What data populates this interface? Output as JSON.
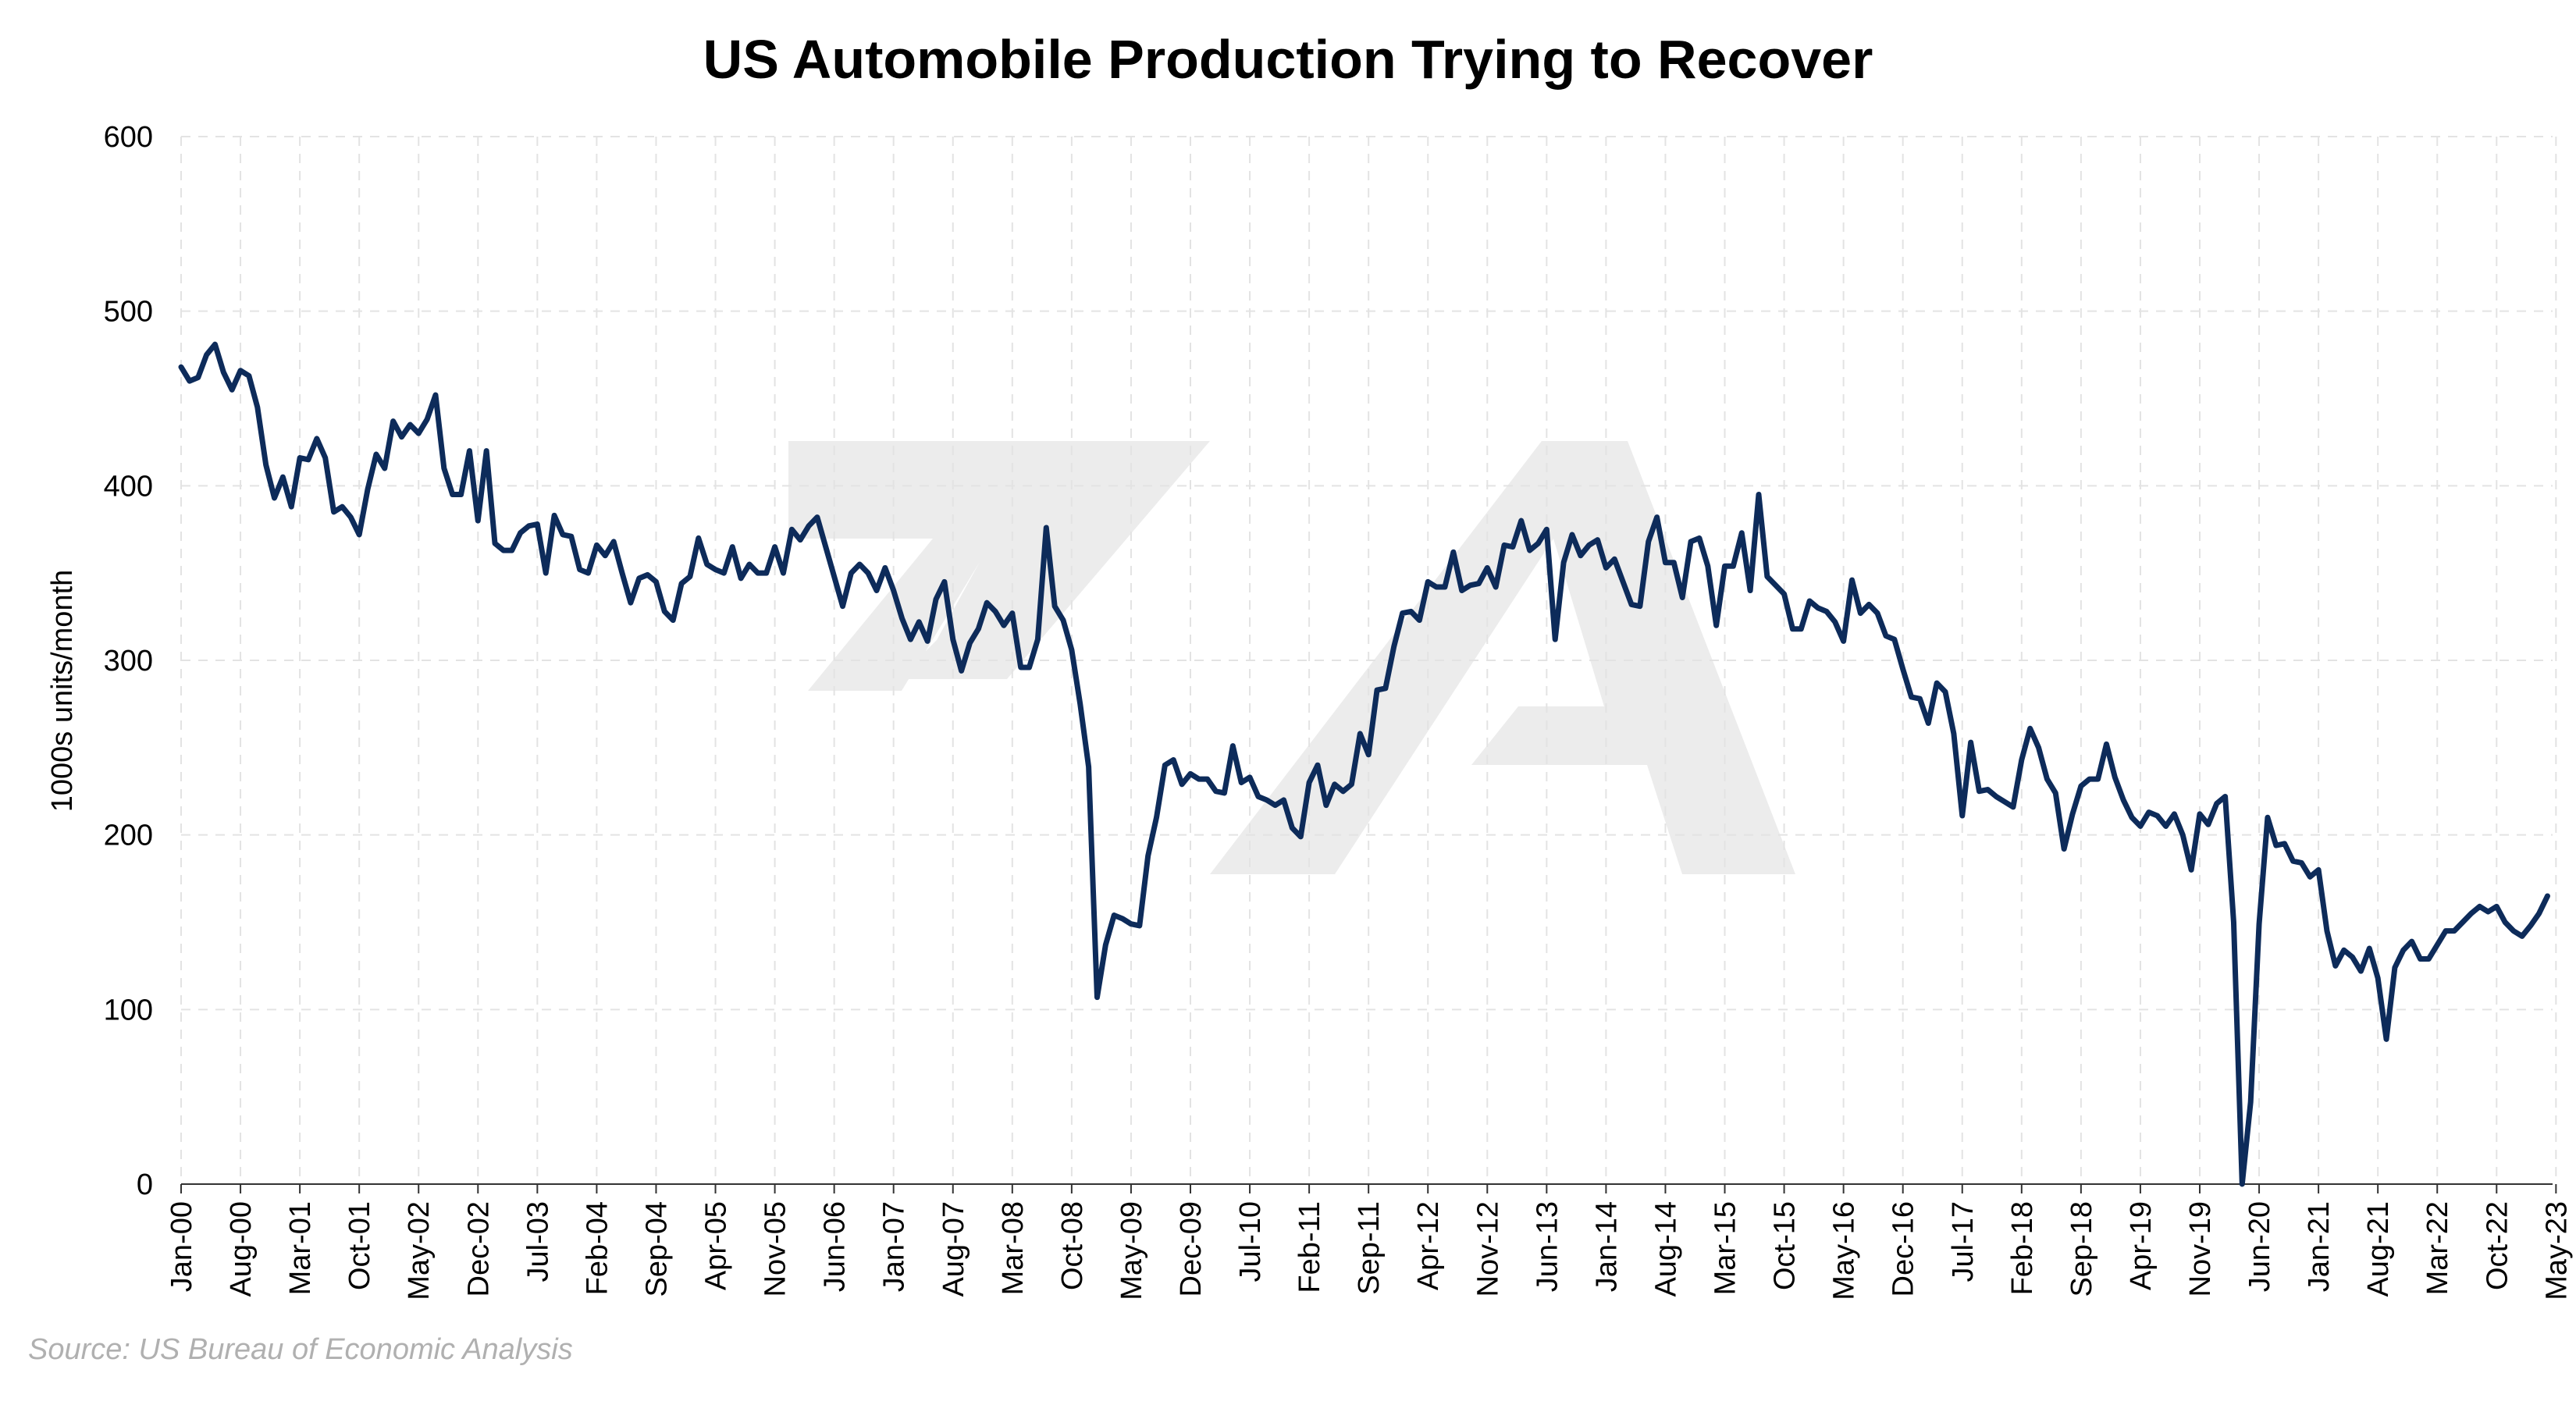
{
  "chart_data": {
    "type": "line",
    "title": "US Automobile Production Trying to Recover",
    "xlabel": "",
    "ylabel": "1000s units/month",
    "ylim": [
      0,
      600
    ],
    "yticks": [
      0,
      100,
      200,
      300,
      400,
      500,
      600
    ],
    "x_tick_labels": [
      "Jan-00",
      "Aug-00",
      "Mar-01",
      "Oct-01",
      "May-02",
      "Dec-02",
      "Jul-03",
      "Feb-04",
      "Sep-04",
      "Apr-05",
      "Nov-05",
      "Jun-06",
      "Jan-07",
      "Aug-07",
      "Mar-08",
      "Oct-08",
      "May-09",
      "Dec-09",
      "Jul-10",
      "Feb-11",
      "Sep-11",
      "Apr-12",
      "Nov-12",
      "Jun-13",
      "Jan-14",
      "Aug-14",
      "Mar-15",
      "Oct-15",
      "May-16",
      "Dec-16",
      "Jul-17",
      "Feb-18",
      "Sep-18",
      "Apr-19",
      "Nov-19",
      "Jun-20",
      "Jan-21",
      "Aug-21",
      "Mar-22",
      "Oct-22",
      "May-23"
    ],
    "x_start": "Jan-00",
    "x_end": "May-23",
    "grid": "dashed, both axes",
    "line_color": "#0d2b5a",
    "series": [
      {
        "name": "",
        "values": [
          468,
          460,
          462,
          475,
          481,
          465,
          455,
          466,
          463,
          445,
          412,
          393,
          405,
          388,
          416,
          415,
          427,
          416,
          385,
          388,
          382,
          372,
          398,
          418,
          410,
          437,
          428,
          435,
          430,
          438,
          452,
          410,
          395,
          395,
          420,
          380,
          420,
          367,
          363,
          363,
          373,
          377,
          378,
          350,
          383,
          372,
          371,
          352,
          350,
          366,
          360,
          368,
          350,
          333,
          347,
          349,
          345,
          328,
          323,
          344,
          348,
          370,
          355,
          352,
          350,
          365,
          347,
          355,
          350,
          350,
          365,
          350,
          375,
          369,
          377,
          382,
          365,
          348,
          331,
          350,
          355,
          350,
          340,
          353,
          340,
          324,
          312,
          322,
          311,
          335,
          345,
          312,
          294,
          310,
          318,
          333,
          328,
          320,
          327,
          296,
          296,
          312,
          376,
          331,
          323,
          306,
          275,
          239,
          107,
          137,
          154,
          152,
          149,
          148,
          188,
          210,
          240,
          243,
          229,
          235,
          232,
          232,
          225,
          224,
          251,
          230,
          233,
          222,
          220,
          217,
          220,
          204,
          199,
          230,
          240,
          217,
          229,
          225,
          229,
          258,
          246,
          283,
          284,
          308,
          327,
          328,
          323,
          345,
          342,
          342,
          362,
          340,
          343,
          344,
          353,
          342,
          366,
          365,
          380,
          363,
          367,
          375,
          312,
          356,
          372,
          360,
          366,
          369,
          353,
          358,
          345,
          332,
          331,
          368,
          382,
          356,
          356,
          336,
          368,
          370,
          354,
          320,
          354,
          354,
          373,
          340,
          395,
          348,
          343,
          338,
          318,
          318,
          334,
          330,
          328,
          322,
          311,
          346,
          327,
          332,
          327,
          314,
          312,
          295,
          279,
          278,
          264,
          287,
          282,
          258,
          211,
          253,
          225,
          226,
          222,
          219,
          216,
          243,
          261,
          250,
          232,
          224,
          192,
          212,
          228,
          232,
          232,
          252,
          233,
          220,
          210,
          205,
          213,
          211,
          205,
          212,
          200,
          180,
          212,
          206,
          218,
          222,
          150,
          0,
          47,
          149,
          210,
          194,
          195,
          185,
          184,
          176,
          180,
          145,
          125,
          134,
          130,
          122,
          135,
          118,
          83,
          124,
          134,
          139,
          129,
          129,
          137,
          145,
          145,
          150,
          155,
          159,
          156,
          159,
          150,
          145,
          142,
          148,
          155,
          165
        ]
      }
    ]
  },
  "source": "Source: US Bureau of Economic Analysis"
}
